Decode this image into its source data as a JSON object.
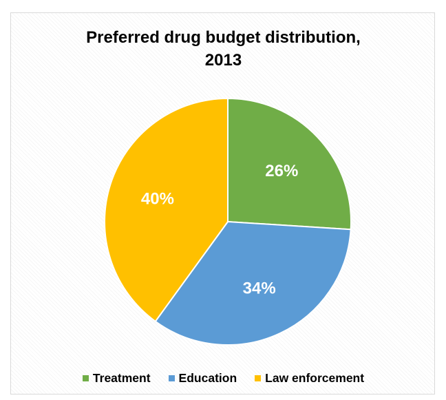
{
  "chart_data": {
    "type": "pie",
    "title": "Preferred drug budget distribution, 2013",
    "title_lines": [
      "Preferred drug budget distribution,",
      "2013"
    ],
    "series": [
      {
        "name": "Treatment",
        "value": 26,
        "label": "26%",
        "color": "#70ad47"
      },
      {
        "name": "Education",
        "value": 34,
        "label": "34%",
        "color": "#5b9bd5"
      },
      {
        "name": "Law enforcement",
        "value": 40,
        "label": "40%",
        "color": "#ffc000"
      }
    ],
    "legend_position": "bottom",
    "start_angle": "12 o'clock",
    "direction": "clockwise"
  }
}
